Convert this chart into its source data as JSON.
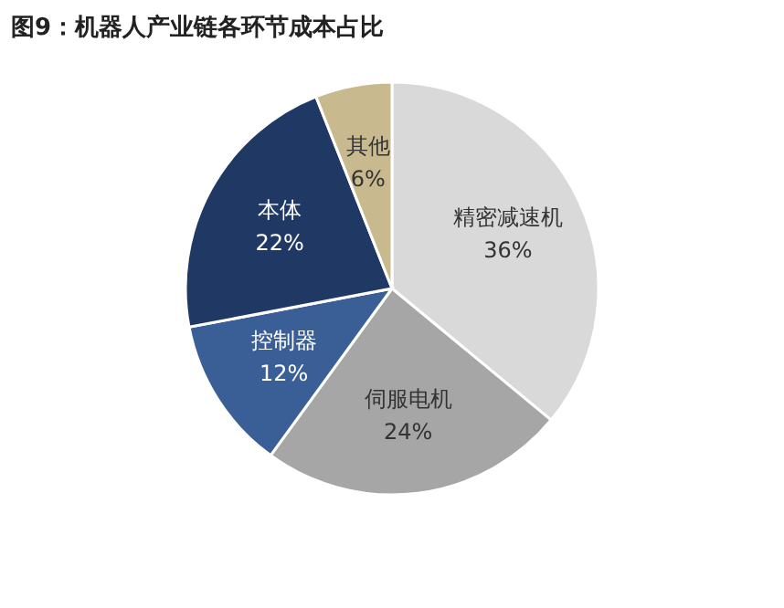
{
  "chart_data": {
    "type": "pie",
    "title": "图9：机器人产业链各环节成本占比",
    "categories": [
      "精密减速机",
      "伺服电机",
      "控制器",
      "本体",
      "其他"
    ],
    "values": [
      36,
      24,
      12,
      22,
      6
    ],
    "value_labels": [
      "36%",
      "24%",
      "12%",
      "22%",
      "6%"
    ],
    "colors": [
      "#d9d9d9",
      "#a6a6a6",
      "#3a5f96",
      "#1f3864",
      "#c9b98e"
    ],
    "legend": false
  }
}
